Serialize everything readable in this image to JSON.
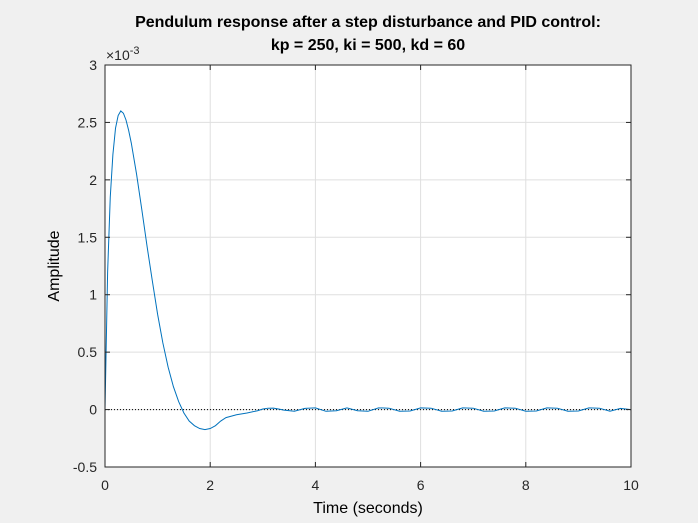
{
  "chart_data": {
    "type": "line",
    "title": [
      "Pendulum response after a step disturbance and PID control:",
      "kp = 250, ki = 500, kd = 60"
    ],
    "xlabel": "Time (seconds)",
    "ylabel": "Amplitude",
    "xlim": [
      0,
      10
    ],
    "ylim": [
      -0.0005,
      0.003
    ],
    "y_exponent_label": "×10",
    "y_exponent_power": "-3",
    "x_ticks": [
      0,
      2,
      4,
      6,
      8,
      10
    ],
    "x_tick_labels": [
      "0",
      "2",
      "4",
      "6",
      "8",
      "10"
    ],
    "y_ticks": [
      -0.0005,
      0,
      0.0005,
      0.001,
      0.0015,
      0.002,
      0.0025,
      0.003
    ],
    "y_tick_labels": [
      "-0.5",
      "0",
      "0.5",
      "1",
      "1.5",
      "2",
      "2.5",
      "3"
    ],
    "grid": true,
    "reference_line": {
      "y": 0,
      "style": "dotted"
    },
    "series": [
      {
        "color": "#0072bd",
        "x": [
          0,
          0.05,
          0.1,
          0.15,
          0.2,
          0.25,
          0.3,
          0.35,
          0.4,
          0.45,
          0.5,
          0.6,
          0.7,
          0.8,
          0.9,
          1.0,
          1.1,
          1.2,
          1.3,
          1.4,
          1.5,
          1.6,
          1.7,
          1.8,
          1.9,
          2.0,
          2.1,
          2.2,
          2.3,
          2.5,
          2.7,
          2.9,
          3.0,
          3.1,
          3.2,
          3.3,
          3.4,
          3.6,
          3.8,
          4.0,
          4.2,
          4.4,
          4.6,
          4.8,
          5.0,
          5.2,
          5.4,
          5.6,
          5.8,
          6.0,
          6.2,
          6.4,
          6.6,
          6.8,
          7.0,
          7.2,
          7.4,
          7.6,
          7.8,
          8.0,
          8.2,
          8.4,
          8.6,
          8.8,
          9.0,
          9.2,
          9.4,
          9.6,
          9.8,
          10.0
        ],
        "y": [
          0,
          0.0012,
          0.00185,
          0.00222,
          0.00245,
          0.00256,
          0.0026,
          0.00258,
          0.00252,
          0.00243,
          0.00232,
          0.00205,
          0.00174,
          0.00142,
          0.00112,
          0.00083,
          0.00058,
          0.00037,
          0.0002,
          7e-05,
          -3e-05,
          -0.0001,
          -0.00014,
          -0.000165,
          -0.000175,
          -0.000165,
          -0.00014,
          -0.0001,
          -7e-05,
          -4.5e-05,
          -3e-05,
          -1e-05,
          5e-06,
          1.2e-05,
          1.3e-05,
          5e-06,
          -5e-06,
          -1.5e-05,
          1e-05,
          1.5e-05,
          -1.5e-05,
          -1e-05,
          1.5e-05,
          -1e-05,
          -1.5e-05,
          1.5e-05,
          1.2e-05,
          -1.5e-05,
          -1.2e-05,
          1.5e-05,
          1.2e-05,
          -1.5e-05,
          -1.2e-05,
          1.5e-05,
          1.2e-05,
          -1.5e-05,
          -1.2e-05,
          1.5e-05,
          1.2e-05,
          -1.5e-05,
          -1.2e-05,
          1.5e-05,
          1.2e-05,
          -1.5e-05,
          -1.2e-05,
          1.5e-05,
          1.2e-05,
          -1.5e-05,
          1e-05,
          0
        ]
      }
    ]
  }
}
